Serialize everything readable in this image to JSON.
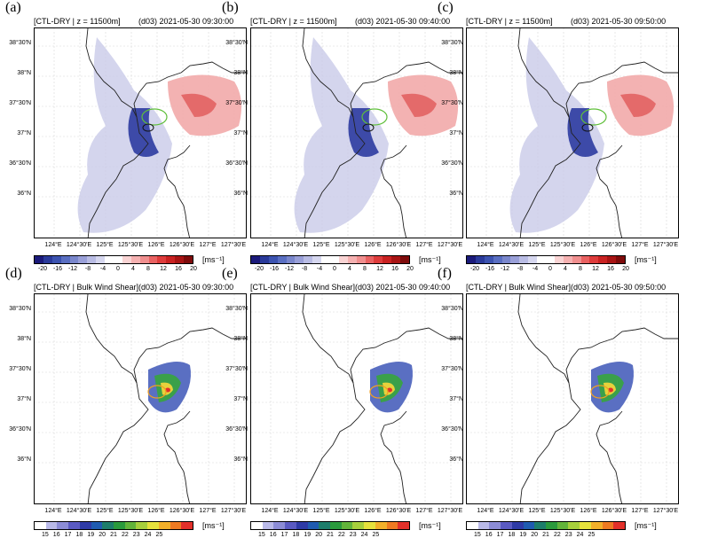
{
  "panels": [
    {
      "letter": "(a)",
      "title_left": "[CTL-DRY | z = 11500m]",
      "title_right": "(d03) 2021-05-30 09:30:00"
    },
    {
      "letter": "(b)",
      "title_left": "[CTL-DRY | z = 11500m]",
      "title_right": "(d03) 2021-05-30 09:40:00"
    },
    {
      "letter": "(c)",
      "title_left": "[CTL-DRY | z = 11500m]",
      "title_right": "(d03) 2021-05-30 09:50:00"
    },
    {
      "letter": "(d)",
      "title_left": "[CTL-DRY | Bulk Wind Shear]",
      "title_right": "(d03) 2021-05-30 09:30:00"
    },
    {
      "letter": "(e)",
      "title_left": "[CTL-DRY | Bulk Wind Shear]",
      "title_right": "(d03) 2021-05-30 09:40:00"
    },
    {
      "letter": "(f)",
      "title_left": "[CTL-DRY | Bulk Wind Shear]",
      "title_right": "(d03) 2021-05-30 09:50:00"
    }
  ],
  "lat_ticks": [
    "38°30'N",
    "38°N",
    "37°30'N",
    "37°N",
    "36°30'N",
    "36°N"
  ],
  "lon_ticks": [
    "124°E",
    "124°30'E",
    "125°E",
    "125°30'E",
    "126°E",
    "126°30'E",
    "127°E",
    "127°30'E"
  ],
  "cbar_top": {
    "labels": [
      "-20",
      "-16",
      "-12",
      "-8",
      "-4",
      "0",
      "4",
      "8",
      "12",
      "16",
      "20"
    ],
    "unit": "[ms⁻¹]",
    "colors": [
      "#1b1a7a",
      "#2a3a9a",
      "#3c53b0",
      "#5a6fc2",
      "#7a87cc",
      "#9aa0d8",
      "#b9bce4",
      "#d6d7ef",
      "#ffffff",
      "#ffffff",
      "#f9d4d4",
      "#f5b1b1",
      "#f08f8f",
      "#e96262",
      "#de3c3c",
      "#c92222",
      "#a81414",
      "#7e0b0b"
    ]
  },
  "cbar_bottom": {
    "labels": [
      "15",
      "16",
      "17",
      "18",
      "19",
      "20",
      "21",
      "22",
      "23",
      "24",
      "25"
    ],
    "unit": "[ms⁻¹]",
    "colors": [
      "#ffffff",
      "#b9b9e8",
      "#8c8cd6",
      "#5a5ac2",
      "#2e3aa6",
      "#1f5bb0",
      "#1d7d6b",
      "#2a9a3c",
      "#62b43a",
      "#a7d03c",
      "#e6e23c",
      "#f2b02a",
      "#ee7a22",
      "#e2302a"
    ]
  }
}
